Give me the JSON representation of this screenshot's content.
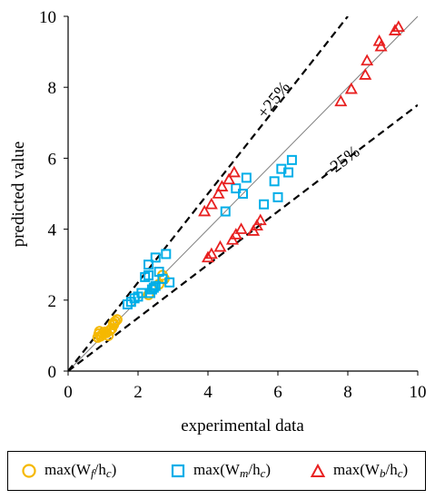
{
  "chart_data": {
    "type": "scatter",
    "xlabel": "experimental data",
    "ylabel": "predicted value",
    "xlim": [
      0,
      10
    ],
    "ylim": [
      0,
      10
    ],
    "xticks": [
      "0",
      "2",
      "4",
      "6",
      "8",
      "10"
    ],
    "yticks": [
      "0",
      "2",
      "4",
      "6",
      "8",
      "10"
    ],
    "grid": false,
    "legend_position": "bottom",
    "reference_lines": [
      {
        "name": "y = x",
        "slope": 1.0,
        "style": "solid",
        "color": "#7f7f7f"
      },
      {
        "name": "+25%",
        "label": "+25%",
        "slope": 1.25,
        "style": "dashed",
        "color": "#000000"
      },
      {
        "name": "-25%",
        "label": "−25%",
        "slope": 0.75,
        "style": "dashed",
        "color": "#000000"
      }
    ],
    "series": [
      {
        "name": "max(Wf/hc)",
        "label_main": "max(W",
        "label_sub": "f",
        "label_tail": "/h",
        "label_sub2": "c",
        "label_close": ")",
        "marker": "circle",
        "color": "#f5b800",
        "points": [
          [
            0.85,
            0.95
          ],
          [
            0.88,
            1.05
          ],
          [
            0.9,
            1.12
          ],
          [
            0.92,
            0.98
          ],
          [
            0.95,
            1.0
          ],
          [
            1.0,
            1.05
          ],
          [
            1.05,
            1.1
          ],
          [
            1.1,
            1.08
          ],
          [
            1.15,
            1.0
          ],
          [
            1.2,
            1.15
          ],
          [
            1.25,
            1.2
          ],
          [
            1.3,
            1.3
          ],
          [
            1.35,
            1.4
          ],
          [
            1.4,
            1.45
          ],
          [
            1.3,
            1.35
          ],
          [
            2.3,
            2.15
          ],
          [
            2.6,
            2.45
          ],
          [
            2.75,
            2.6
          ],
          [
            2.7,
            2.7
          ]
        ]
      },
      {
        "name": "max(Wm/hc)",
        "label_main": "max(W",
        "label_sub": "m",
        "label_tail": "/h",
        "label_sub2": "c",
        "label_close": ")",
        "marker": "square",
        "color": "#00aee8",
        "points": [
          [
            1.7,
            1.88
          ],
          [
            1.8,
            1.95
          ],
          [
            1.9,
            2.05
          ],
          [
            2.0,
            2.1
          ],
          [
            2.1,
            2.2
          ],
          [
            2.2,
            2.65
          ],
          [
            2.3,
            2.7
          ],
          [
            2.35,
            2.2
          ],
          [
            2.4,
            2.3
          ],
          [
            2.45,
            2.35
          ],
          [
            2.5,
            2.4
          ],
          [
            2.6,
            2.8
          ],
          [
            2.3,
            3.0
          ],
          [
            2.5,
            3.2
          ],
          [
            2.7,
            2.6
          ],
          [
            2.8,
            3.3
          ],
          [
            2.9,
            2.5
          ],
          [
            4.5,
            4.5
          ],
          [
            4.8,
            5.15
          ],
          [
            5.0,
            5.0
          ],
          [
            5.1,
            5.45
          ],
          [
            5.6,
            4.7
          ],
          [
            5.9,
            5.35
          ],
          [
            6.0,
            4.9
          ],
          [
            6.1,
            5.7
          ],
          [
            6.3,
            5.6
          ],
          [
            6.4,
            5.95
          ]
        ]
      },
      {
        "name": "max(Wb/hc)",
        "label_main": "max(W",
        "label_sub": "b",
        "label_tail": "/h",
        "label_sub2": "c",
        "label_close": ")",
        "marker": "triangle",
        "color": "#e82020",
        "points": [
          [
            3.9,
            4.5
          ],
          [
            4.1,
            4.7
          ],
          [
            4.3,
            5.0
          ],
          [
            4.4,
            5.2
          ],
          [
            4.6,
            5.4
          ],
          [
            4.75,
            5.6
          ],
          [
            4.0,
            3.2
          ],
          [
            4.1,
            3.3
          ],
          [
            4.35,
            3.5
          ],
          [
            4.7,
            3.7
          ],
          [
            4.8,
            3.85
          ],
          [
            4.95,
            4.0
          ],
          [
            5.3,
            3.95
          ],
          [
            5.4,
            4.1
          ],
          [
            5.5,
            4.25
          ],
          [
            7.8,
            7.6
          ],
          [
            8.1,
            7.95
          ],
          [
            8.5,
            8.35
          ],
          [
            8.55,
            8.75
          ],
          [
            8.9,
            9.3
          ],
          [
            8.95,
            9.15
          ],
          [
            9.35,
            9.6
          ],
          [
            9.45,
            9.7
          ]
        ]
      }
    ]
  }
}
